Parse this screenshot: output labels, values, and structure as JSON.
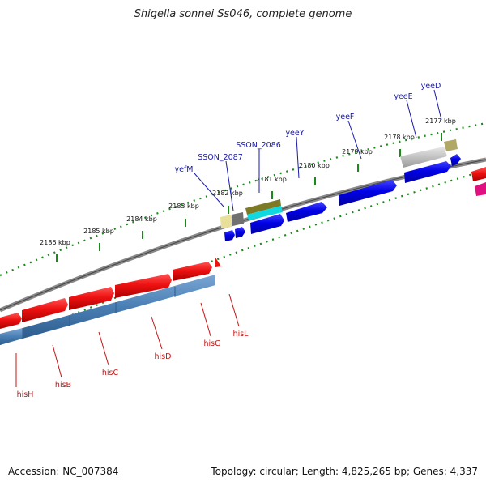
{
  "title": "Shigella sonnei Ss046, complete genome",
  "accession": "Accession: NC_007384",
  "topology": "Topology: circular; Length: 4,825,265 bp; Genes: 4,337",
  "ticks": [
    {
      "label": "2186 kbp",
      "kbp": 2186
    },
    {
      "label": "2185 kbp",
      "kbp": 2185
    },
    {
      "label": "2184 kbp",
      "kbp": 2184
    },
    {
      "label": "2183 kbp",
      "kbp": 2183
    },
    {
      "label": "2182 kbp",
      "kbp": 2182
    },
    {
      "label": "2181 kbp",
      "kbp": 2181
    },
    {
      "label": "2180 kbp",
      "kbp": 2180
    },
    {
      "label": "2179 kbp",
      "kbp": 2179
    },
    {
      "label": "2178 kbp",
      "kbp": 2178
    },
    {
      "label": "2177 kbp",
      "kbp": 2177
    }
  ],
  "forward_genes": [
    {
      "label": "yefM",
      "color": "#1a1aa6"
    },
    {
      "label": "SSON_2087",
      "color": "#1a1aa6"
    },
    {
      "label": "SSON_2086",
      "color": "#1a1aa6"
    },
    {
      "label": "yeeY",
      "color": "#1a1aa6"
    },
    {
      "label": "yeeF",
      "color": "#1a1aa6"
    },
    {
      "label": "yeeE",
      "color": "#1a1aa6"
    },
    {
      "label": "yeeD",
      "color": "#1a1aa6"
    }
  ],
  "reverse_genes": [
    {
      "label": "hisH",
      "color": "#c01414"
    },
    {
      "label": "hisB",
      "color": "#c01414"
    },
    {
      "label": "hisC",
      "color": "#c01414"
    },
    {
      "label": "hisD",
      "color": "#c01414"
    },
    {
      "label": "hisG",
      "color": "#c01414"
    },
    {
      "label": "hisL",
      "color": "#c01414"
    }
  ],
  "colors": {
    "forward_cds": "#0000e6",
    "reverse_cds": "#ee1111",
    "gene_band": "#4a7fb4",
    "backbone": "#888888",
    "tick_marks": "#1a8a1a"
  }
}
